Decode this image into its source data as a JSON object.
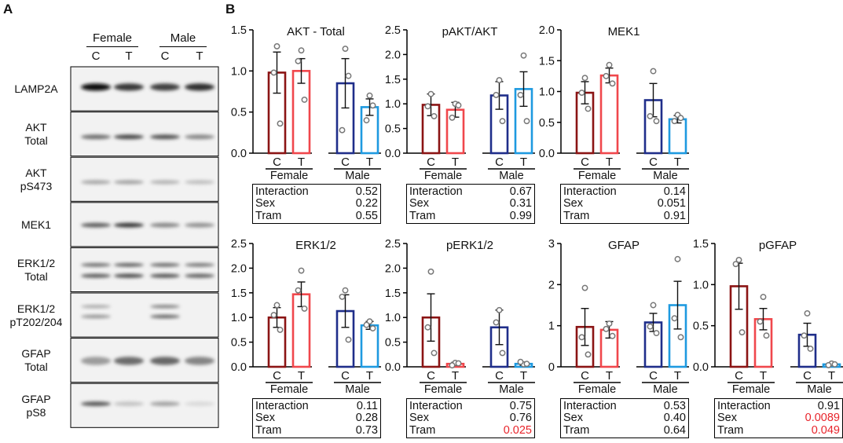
{
  "panels": {
    "a": "A",
    "b": "B"
  },
  "blot": {
    "groups": [
      {
        "label": "Female"
      },
      {
        "label": "Male"
      }
    ],
    "lanes": [
      "C",
      "T",
      "C",
      "T"
    ],
    "rows": [
      {
        "line1": "LAMP2A",
        "line2": "",
        "bands": [
          {
            "y": 0.45,
            "i": [
              0.95,
              0.78,
              0.75,
              0.82
            ],
            "h": 0.16
          }
        ]
      },
      {
        "line1": "AKT",
        "line2": "Total",
        "bands": [
          {
            "y": 0.55,
            "i": [
              0.55,
              0.72,
              0.68,
              0.45
            ],
            "h": 0.1
          }
        ]
      },
      {
        "line1": "AKT",
        "line2": "pS473",
        "bands": [
          {
            "y": 0.55,
            "i": [
              0.3,
              0.32,
              0.25,
              0.2
            ],
            "h": 0.09
          }
        ]
      },
      {
        "line1": "MEK1",
        "line2": "",
        "bands": [
          {
            "y": 0.5,
            "i": [
              0.62,
              0.8,
              0.45,
              0.4
            ],
            "h": 0.1
          }
        ]
      },
      {
        "line1": "ERK1/2",
        "line2": "Total",
        "bands": [
          {
            "y": 0.38,
            "i": [
              0.55,
              0.62,
              0.58,
              0.52
            ],
            "h": 0.08
          },
          {
            "y": 0.62,
            "i": [
              0.62,
              0.7,
              0.66,
              0.6
            ],
            "h": 0.09
          }
        ]
      },
      {
        "line1": "ERK1/2",
        "line2": "pT202/204",
        "bands": [
          {
            "y": 0.3,
            "i": [
              0.3,
              0.02,
              0.48,
              0.02
            ],
            "h": 0.07
          },
          {
            "y": 0.52,
            "i": [
              0.38,
              0.02,
              0.58,
              0.02
            ],
            "h": 0.08
          }
        ]
      },
      {
        "line1": "GFAP",
        "line2": "Total",
        "bands": [
          {
            "y": 0.5,
            "i": [
              0.35,
              0.55,
              0.58,
              0.45
            ],
            "h": 0.18
          }
        ]
      },
      {
        "line1": "GFAP",
        "line2": "pS8",
        "bands": [
          {
            "y": 0.45,
            "i": [
              0.65,
              0.18,
              0.32,
              0.08
            ],
            "h": 0.1
          }
        ]
      }
    ]
  },
  "stat_labels": [
    "Interaction",
    "Sex",
    "Tram"
  ],
  "colors": {
    "female_c": "#8b1414",
    "female_t": "#f0474c",
    "male_c": "#1f2e8a",
    "male_t": "#1e9ae0",
    "dots": "#777777",
    "significant": "#e8242b"
  },
  "chart_data": [
    {
      "type": "bar",
      "title": "AKT - Total",
      "categories": [
        "C",
        "T",
        "C",
        "T"
      ],
      "groups": [
        "Female",
        "Male"
      ],
      "ylim": [
        0,
        1.5
      ],
      "yticks": [
        "0.0",
        "0.5",
        "1.0",
        "1.5"
      ],
      "values": [
        0.98,
        1.0,
        0.85,
        0.56
      ],
      "errors": [
        0.25,
        0.15,
        0.3,
        0.1
      ],
      "points": [
        [
          1.3,
          0.98,
          0.36
        ],
        [
          1.25,
          1.12,
          0.65
        ],
        [
          1.27,
          0.28,
          0.94
        ],
        [
          0.7,
          0.4,
          0.58
        ]
      ],
      "stats": [
        {
          "label": "Interaction",
          "value": "0.52",
          "sig": false
        },
        {
          "label": "Sex",
          "value": "0.22",
          "sig": false
        },
        {
          "label": "Tram",
          "value": "0.55",
          "sig": false
        }
      ]
    },
    {
      "type": "bar",
      "title": "pAKT/AKT",
      "categories": [
        "C",
        "T",
        "C",
        "T"
      ],
      "groups": [
        "Female",
        "Male"
      ],
      "ylim": [
        0,
        2.5
      ],
      "yticks": [
        "0.0",
        "0.5",
        "1.0",
        "1.5",
        "2.0",
        "2.5"
      ],
      "values": [
        0.98,
        0.88,
        1.17,
        1.3
      ],
      "errors": [
        0.22,
        0.15,
        0.28,
        0.35
      ],
      "points": [
        [
          1.2,
          0.95,
          0.75
        ],
        [
          1.0,
          0.72,
          0.97
        ],
        [
          1.48,
          1.18,
          0.65
        ],
        [
          1.98,
          1.18,
          0.65
        ]
      ],
      "stats": [
        {
          "label": "Interaction",
          "value": "0.67",
          "sig": false
        },
        {
          "label": "Sex",
          "value": "0.31",
          "sig": false
        },
        {
          "label": "Tram",
          "value": "0.99",
          "sig": false
        }
      ]
    },
    {
      "type": "bar",
      "title": "MEK1",
      "categories": [
        "C",
        "T",
        "C",
        "T"
      ],
      "groups": [
        "Female",
        "Male"
      ],
      "ylim": [
        0,
        2.0
      ],
      "yticks": [
        "0.0",
        "0.5",
        "1.0",
        "1.5",
        "2.0"
      ],
      "values": [
        0.98,
        1.26,
        0.86,
        0.55
      ],
      "errors": [
        0.18,
        0.12,
        0.27,
        0.06
      ],
      "points": [
        [
          1.22,
          0.98,
          0.72
        ],
        [
          1.43,
          1.25,
          1.13
        ],
        [
          1.33,
          0.6,
          0.52
        ],
        [
          0.62,
          0.52,
          0.57
        ]
      ],
      "stats": [
        {
          "label": "Interaction",
          "value": "0.14",
          "sig": false
        },
        {
          "label": "Sex",
          "value": "0.051",
          "sig": false
        },
        {
          "label": "Tram",
          "value": "0.91",
          "sig": false
        }
      ]
    },
    {
      "type": "bar",
      "title": "ERK1/2",
      "categories": [
        "C",
        "T",
        "C",
        "T"
      ],
      "groups": [
        "Female",
        "Male"
      ],
      "ylim": [
        0,
        2.5
      ],
      "yticks": [
        "0.0",
        "0.5",
        "1.0",
        "1.5",
        "2.0",
        "2.5"
      ],
      "values": [
        1.0,
        1.47,
        1.13,
        0.84
      ],
      "errors": [
        0.2,
        0.25,
        0.33,
        0.08
      ],
      "points": [
        [
          1.25,
          1.05,
          0.75
        ],
        [
          1.95,
          1.55,
          1.18
        ],
        [
          1.55,
          1.42,
          0.55
        ],
        [
          0.92,
          0.85,
          0.78
        ]
      ],
      "stats": [
        {
          "label": "Interaction",
          "value": "0.11",
          "sig": false
        },
        {
          "label": "Sex",
          "value": "0.28",
          "sig": false
        },
        {
          "label": "Tram",
          "value": "0.73",
          "sig": false
        }
      ]
    },
    {
      "type": "bar",
      "title": "pERK1/2",
      "categories": [
        "C",
        "T",
        "C",
        "T"
      ],
      "groups": [
        "Female",
        "Male"
      ],
      "ylim": [
        0,
        2.5
      ],
      "yticks": [
        "0.0",
        "0.5",
        "1.0",
        "1.5",
        "2.0",
        "2.5"
      ],
      "values": [
        1.0,
        0.06,
        0.8,
        0.06
      ],
      "errors": [
        0.48,
        0.03,
        0.35,
        0.03
      ],
      "points": [
        [
          1.93,
          0.8,
          0.28
        ],
        [
          0.08,
          0.03,
          0.07
        ],
        [
          1.15,
          0.9,
          0.28
        ],
        [
          0.05,
          0.1,
          0.06
        ]
      ],
      "stats": [
        {
          "label": "Interaction",
          "value": "0.75",
          "sig": false
        },
        {
          "label": "Sex",
          "value": "0.76",
          "sig": false
        },
        {
          "label": "Tram",
          "value": "0.025",
          "sig": true
        }
      ]
    },
    {
      "type": "bar",
      "title": "GFAP",
      "categories": [
        "C",
        "T",
        "C",
        "T"
      ],
      "groups": [
        "Female",
        "Male"
      ],
      "ylim": [
        0,
        3
      ],
      "yticks": [
        "0",
        "1",
        "2",
        "3"
      ],
      "values": [
        0.97,
        0.9,
        1.08,
        1.5
      ],
      "errors": [
        0.45,
        0.2,
        0.22,
        0.58
      ],
      "points": [
        [
          1.92,
          0.72,
          0.3
        ],
        [
          1.05,
          0.92,
          0.75
        ],
        [
          1.5,
          0.98,
          0.82
        ],
        [
          2.62,
          1.18,
          0.72
        ]
      ],
      "stats": [
        {
          "label": "Interaction",
          "value": "0.53",
          "sig": false
        },
        {
          "label": "Sex",
          "value": "0.40",
          "sig": false
        },
        {
          "label": "Tram",
          "value": "0.64",
          "sig": false
        }
      ]
    },
    {
      "type": "bar",
      "title": "pGFAP",
      "categories": [
        "C",
        "T",
        "C",
        "T"
      ],
      "groups": [
        "Female",
        "Male"
      ],
      "ylim": [
        0,
        1.5
      ],
      "yticks": [
        "0.0",
        "0.5",
        "1.0",
        "1.5"
      ],
      "values": [
        0.98,
        0.58,
        0.39,
        0.03
      ],
      "errors": [
        0.28,
        0.13,
        0.14,
        0.01
      ],
      "points": [
        [
          1.3,
          1.25,
          0.42
        ],
        [
          0.85,
          0.55,
          0.38
        ],
        [
          0.65,
          0.38,
          0.22
        ],
        [
          0.04,
          0.02,
          0.03
        ]
      ],
      "stats": [
        {
          "label": "Interaction",
          "value": "0.91",
          "sig": false
        },
        {
          "label": "Sex",
          "value": "0.0089",
          "sig": true
        },
        {
          "label": "Tram",
          "value": "0.049",
          "sig": true
        }
      ]
    }
  ]
}
